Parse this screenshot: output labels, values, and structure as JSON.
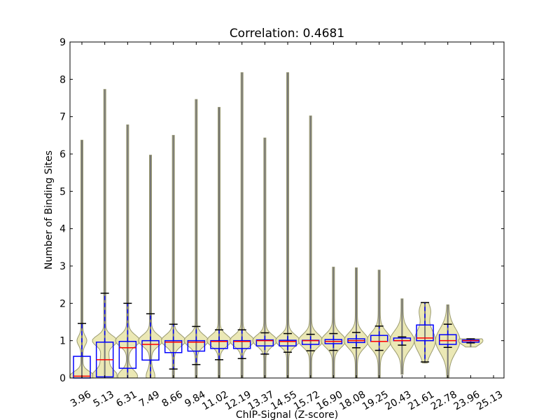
{
  "chart_data": {
    "type": "violin",
    "title": "Correlation: 0.4681",
    "xlabel": "ChIP-Signal (Z-score)",
    "ylabel": "Number of Binding Sites",
    "ylim": [
      0,
      9
    ],
    "yticks": [
      "0",
      "1",
      "2",
      "3",
      "4",
      "5",
      "6",
      "7",
      "8",
      "9"
    ],
    "grid": false,
    "categories": [
      "3.96",
      "5.13",
      "6.31",
      "7.49",
      "8.66",
      "9.84",
      "11.02",
      "12.19",
      "13.37",
      "14.55",
      "15.72",
      "16.90",
      "18.08",
      "19.25",
      "20.43",
      "21.61",
      "22.78",
      "23.96",
      "25.13"
    ],
    "boxes": [
      {
        "whislo": 0,
        "q1": 0,
        "med": 0.05,
        "q3": 0.58,
        "whishi": 1.46
      },
      {
        "whislo": 0,
        "q1": 0.03,
        "med": 0.49,
        "q3": 0.96,
        "whishi": 2.27
      },
      {
        "whislo": 0,
        "q1": 0.26,
        "med": 0.81,
        "q3": 0.98,
        "whishi": 2.0
      },
      {
        "whislo": 0,
        "q1": 0.48,
        "med": 0.9,
        "q3": 1.0,
        "whishi": 1.72
      },
      {
        "whislo": 0.24,
        "q1": 0.68,
        "med": 0.96,
        "q3": 1.0,
        "whishi": 1.44
      },
      {
        "whislo": 0.36,
        "q1": 0.72,
        "med": 0.96,
        "q3": 1.0,
        "whishi": 1.38
      },
      {
        "whislo": 0.49,
        "q1": 0.79,
        "med": 0.98,
        "q3": 1.0,
        "whishi": 1.29
      },
      {
        "whislo": 0.52,
        "q1": 0.79,
        "med": 0.98,
        "q3": 1.0,
        "whishi": 1.29
      },
      {
        "whislo": 0.64,
        "q1": 0.86,
        "med": 1.0,
        "q3": 1.02,
        "whishi": 1.21
      },
      {
        "whislo": 0.69,
        "q1": 0.86,
        "med": 0.98,
        "q3": 1.01,
        "whishi": 1.19
      },
      {
        "whislo": 0.73,
        "q1": 0.9,
        "med": 1.0,
        "q3": 1.01,
        "whishi": 1.17
      },
      {
        "whislo": 0.74,
        "q1": 0.92,
        "med": 0.98,
        "q3": 1.03,
        "whishi": 1.19
      },
      {
        "whislo": 0.81,
        "q1": 0.95,
        "med": 1.0,
        "q3": 1.05,
        "whishi": 1.22
      },
      {
        "whislo": 0.74,
        "q1": 0.98,
        "med": 0.98,
        "q3": 1.14,
        "whishi": 1.39
      },
      {
        "whislo": 0.88,
        "q1": 1.0,
        "med": 1.0,
        "q3": 1.07,
        "whishi": 1.1
      },
      {
        "whislo": 0.43,
        "q1": 1.0,
        "med": 1.07,
        "q3": 1.42,
        "whishi": 2.02
      },
      {
        "whislo": 0.82,
        "q1": 0.9,
        "med": 1.0,
        "q3": 1.16,
        "whishi": 1.44
      },
      {
        "whislo": 0.94,
        "q1": 0.96,
        "med": 1.0,
        "q3": 1.02,
        "whishi": 1.05
      },
      null
    ],
    "violins": [
      {
        "min": 0,
        "max": 6.37,
        "modes": [
          [
            0.05,
            1,
            0.12
          ],
          [
            1.0,
            0.35,
            0.12
          ]
        ]
      },
      {
        "min": 0,
        "max": 7.73,
        "modes": [
          [
            0.05,
            1,
            0.15
          ],
          [
            1.0,
            1,
            0.13
          ],
          [
            0.5,
            0.3,
            0.25
          ]
        ]
      },
      {
        "min": 0,
        "max": 6.78,
        "modes": [
          [
            0.05,
            0.8,
            0.15
          ],
          [
            1.0,
            1,
            0.15
          ]
        ]
      },
      {
        "min": 0,
        "max": 5.97,
        "modes": [
          [
            0.05,
            0.3,
            0.15
          ],
          [
            1.0,
            1,
            0.15
          ]
        ]
      },
      {
        "min": 0,
        "max": 6.5,
        "modes": [
          [
            1.0,
            1,
            0.15
          ]
        ]
      },
      {
        "min": 0,
        "max": 7.46,
        "modes": [
          [
            1.0,
            1,
            0.15
          ]
        ]
      },
      {
        "min": 0,
        "max": 7.25,
        "modes": [
          [
            1.0,
            1,
            0.15
          ]
        ]
      },
      {
        "min": 0,
        "max": 8.18,
        "modes": [
          [
            1.0,
            1,
            0.15
          ]
        ]
      },
      {
        "min": 0,
        "max": 6.43,
        "modes": [
          [
            1.0,
            1,
            0.15
          ]
        ]
      },
      {
        "min": 0,
        "max": 8.18,
        "modes": [
          [
            1.0,
            1,
            0.15
          ]
        ]
      },
      {
        "min": 0,
        "max": 7.02,
        "modes": [
          [
            1.0,
            1,
            0.17
          ]
        ]
      },
      {
        "min": 0,
        "max": 2.97,
        "modes": [
          [
            1.0,
            1,
            0.18
          ]
        ]
      },
      {
        "min": 0,
        "max": 2.95,
        "modes": [
          [
            1.0,
            1,
            0.2
          ]
        ]
      },
      {
        "min": 0,
        "max": 2.89,
        "modes": [
          [
            1.0,
            1,
            0.22
          ]
        ]
      },
      {
        "min": 0.1,
        "max": 2.12,
        "modes": [
          [
            1.0,
            1,
            0.25
          ]
        ]
      },
      {
        "min": 0.4,
        "max": 2.02,
        "modes": [
          [
            1.0,
            0.85,
            0.3
          ],
          [
            1.8,
            0.4,
            0.2
          ]
        ]
      },
      {
        "min": 0,
        "max": 1.96,
        "modes": [
          [
            1.0,
            1,
            0.32
          ]
        ]
      },
      {
        "min": 0.83,
        "max": 1.05,
        "modes": [
          [
            1.0,
            1,
            0.12
          ]
        ]
      },
      null
    ],
    "colors": {
      "violin_fill": "#e8e4a8",
      "violin_edge": "#9a9a70",
      "box": "#0000ff",
      "median": "#ff0000",
      "whisker_cap": "#000000"
    }
  }
}
